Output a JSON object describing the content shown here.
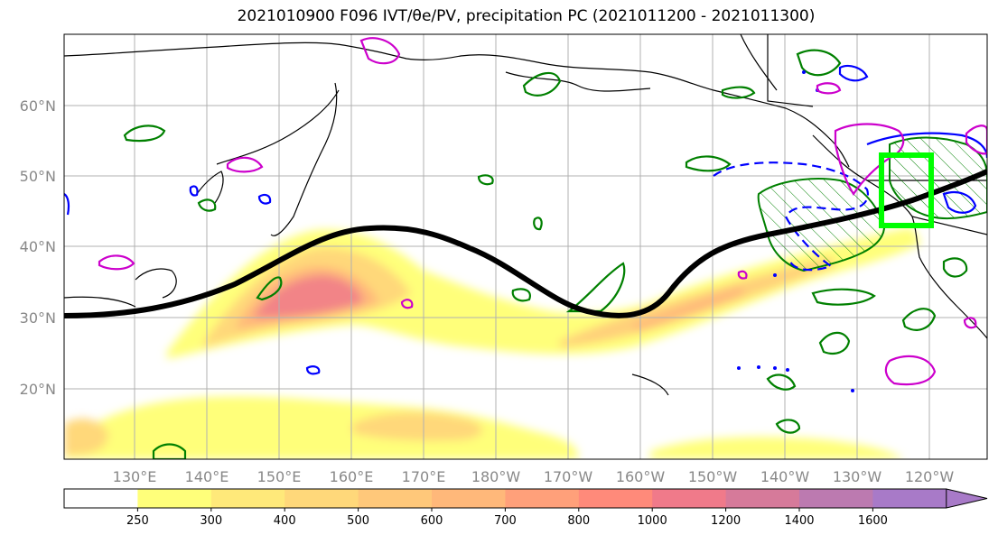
{
  "title": "2021010900 F096 IVT/θe/PV, precipitation PC (2021011200 - 2021011300)",
  "latitude_labels": [
    "60°N",
    "50°N",
    "40°N",
    "30°N",
    "20°N"
  ],
  "longitude_labels": [
    "130°E",
    "140°E",
    "150°E",
    "160°E",
    "170°E",
    "180°W",
    "170°W",
    "160°W",
    "150°W",
    "140°W",
    "130°W",
    "120°W"
  ],
  "colorbar": {
    "ticks": [
      "250",
      "300",
      "400",
      "500",
      "600",
      "700",
      "800",
      "1000",
      "1200",
      "1400",
      "1600"
    ],
    "colors": [
      "#ffffff",
      "#ffff7a",
      "#ffe97a",
      "#ffd87a",
      "#ffc87a",
      "#ffb87a",
      "#ffa07a",
      "#ff8a7a",
      "#f07a8a",
      "#d67a9a",
      "#bc7ab0",
      "#a87ac8"
    ],
    "extend": "max"
  },
  "highlight_box_color": "#00ff00",
  "jet_line_color": "#000000",
  "contour_colors": {
    "theta_e": "#008000",
    "pv": "#0000ff",
    "precip": "#cc00cc"
  }
}
